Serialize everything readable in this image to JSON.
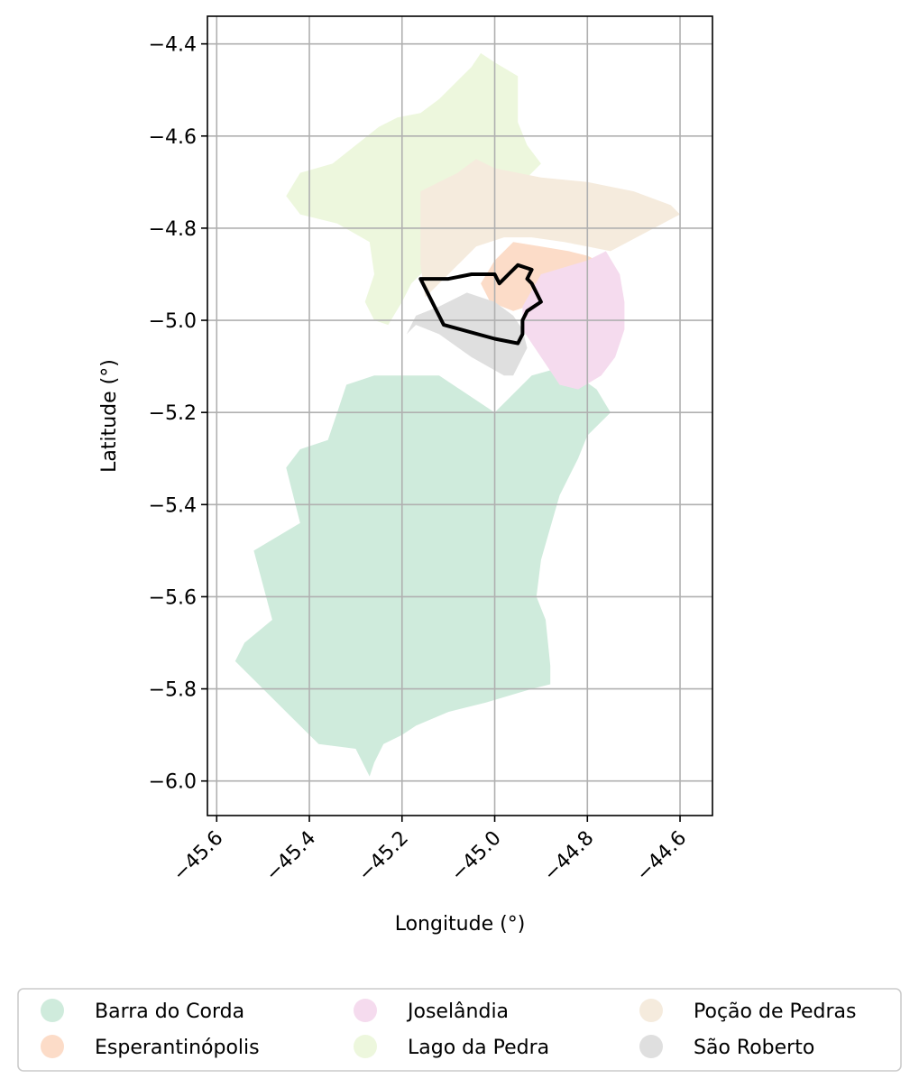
{
  "chart_data": {
    "type": "map",
    "xlabel": "Longitude (°)",
    "ylabel": "Latitude (°)",
    "xlim": [
      -45.62,
      -44.53
    ],
    "ylim": [
      -6.075,
      -4.34
    ],
    "xticks": [
      {
        "value": -45.6,
        "label": "−45.6"
      },
      {
        "value": -45.4,
        "label": "−45.4"
      },
      {
        "value": -45.2,
        "label": "−45.2"
      },
      {
        "value": -45.0,
        "label": "−45.0"
      },
      {
        "value": -44.8,
        "label": "−44.8"
      },
      {
        "value": -44.6,
        "label": "−44.6"
      }
    ],
    "yticks": [
      {
        "value": -4.4,
        "label": "−4.4"
      },
      {
        "value": -4.6,
        "label": "−4.6"
      },
      {
        "value": -4.8,
        "label": "−4.8"
      },
      {
        "value": -5.0,
        "label": "−5.0"
      },
      {
        "value": -5.2,
        "label": "−5.2"
      },
      {
        "value": -5.4,
        "label": "−5.4"
      },
      {
        "value": -5.6,
        "label": "−5.6"
      },
      {
        "value": -5.8,
        "label": "−5.8"
      },
      {
        "value": -6.0,
        "label": "−6.0"
      }
    ],
    "grid": true,
    "legend_placement": "bottom-center, 3 columns",
    "regions": [
      {
        "name": "Barra do Corda",
        "color": "#cfebdc",
        "coords": [
          [
            -45.2,
            -5.12
          ],
          [
            -45.12,
            -5.12
          ],
          [
            -45.0,
            -5.2
          ],
          [
            -44.92,
            -5.12
          ],
          [
            -44.85,
            -5.1
          ],
          [
            -44.78,
            -5.15
          ],
          [
            -44.75,
            -5.2
          ],
          [
            -44.8,
            -5.25
          ],
          [
            -44.82,
            -5.3
          ],
          [
            -44.86,
            -5.38
          ],
          [
            -44.88,
            -5.45
          ],
          [
            -44.9,
            -5.52
          ],
          [
            -44.91,
            -5.6
          ],
          [
            -44.89,
            -5.65
          ],
          [
            -44.88,
            -5.75
          ],
          [
            -44.88,
            -5.79
          ],
          [
            -44.92,
            -5.8
          ],
          [
            -45.02,
            -5.83
          ],
          [
            -45.1,
            -5.85
          ],
          [
            -45.17,
            -5.88
          ],
          [
            -45.2,
            -5.9
          ],
          [
            -45.24,
            -5.92
          ],
          [
            -45.26,
            -5.96
          ],
          [
            -45.27,
            -5.99
          ],
          [
            -45.3,
            -5.93
          ],
          [
            -45.38,
            -5.92
          ],
          [
            -45.44,
            -5.86
          ],
          [
            -45.56,
            -5.74
          ],
          [
            -45.54,
            -5.7
          ],
          [
            -45.48,
            -5.65
          ],
          [
            -45.52,
            -5.5
          ],
          [
            -45.42,
            -5.44
          ],
          [
            -45.43,
            -5.4
          ],
          [
            -45.45,
            -5.32
          ],
          [
            -45.42,
            -5.28
          ],
          [
            -45.36,
            -5.26
          ],
          [
            -45.34,
            -5.2
          ],
          [
            -45.32,
            -5.14
          ],
          [
            -45.26,
            -5.12
          ]
        ]
      },
      {
        "name": "Esperantinópolis",
        "color": "#fcdcc8",
        "coords": [
          [
            -45.0,
            -4.87
          ],
          [
            -44.96,
            -4.83
          ],
          [
            -44.9,
            -4.84
          ],
          [
            -44.84,
            -4.85
          ],
          [
            -44.8,
            -4.86
          ],
          [
            -44.76,
            -4.88
          ],
          [
            -44.82,
            -4.92
          ],
          [
            -44.9,
            -4.96
          ],
          [
            -44.96,
            -4.98
          ],
          [
            -45.01,
            -4.96
          ],
          [
            -45.03,
            -4.92
          ]
        ]
      },
      {
        "name": "Joselândia",
        "color": "#f5dbee",
        "coords": [
          [
            -44.9,
            -4.9
          ],
          [
            -44.8,
            -4.87
          ],
          [
            -44.76,
            -4.85
          ],
          [
            -44.73,
            -4.9
          ],
          [
            -44.72,
            -4.96
          ],
          [
            -44.72,
            -5.02
          ],
          [
            -44.74,
            -5.08
          ],
          [
            -44.77,
            -5.12
          ],
          [
            -44.82,
            -5.15
          ],
          [
            -44.86,
            -5.14
          ],
          [
            -44.9,
            -5.08
          ],
          [
            -44.94,
            -5.02
          ],
          [
            -44.94,
            -4.97
          ]
        ]
      },
      {
        "name": "Lago da Pedra",
        "color": "#edf7dd",
        "coords": [
          [
            -45.16,
            -4.55
          ],
          [
            -45.12,
            -4.52
          ],
          [
            -45.08,
            -4.48
          ],
          [
            -45.05,
            -4.45
          ],
          [
            -45.03,
            -4.42
          ],
          [
            -45.0,
            -4.44
          ],
          [
            -44.95,
            -4.47
          ],
          [
            -44.95,
            -4.52
          ],
          [
            -44.95,
            -4.57
          ],
          [
            -44.93,
            -4.62
          ],
          [
            -44.9,
            -4.66
          ],
          [
            -44.96,
            -4.72
          ],
          [
            -45.03,
            -4.78
          ],
          [
            -45.08,
            -4.82
          ],
          [
            -45.14,
            -4.88
          ],
          [
            -45.18,
            -4.92
          ],
          [
            -45.2,
            -4.96
          ],
          [
            -45.23,
            -5.01
          ],
          [
            -45.26,
            -5.0
          ],
          [
            -45.28,
            -4.96
          ],
          [
            -45.26,
            -4.9
          ],
          [
            -45.27,
            -4.83
          ],
          [
            -45.34,
            -4.79
          ],
          [
            -45.42,
            -4.77
          ],
          [
            -45.45,
            -4.73
          ],
          [
            -45.42,
            -4.68
          ],
          [
            -45.35,
            -4.66
          ],
          [
            -45.3,
            -4.62
          ],
          [
            -45.25,
            -4.58
          ],
          [
            -45.21,
            -4.56
          ]
        ]
      },
      {
        "name": "Poção de Pedras",
        "color": "#f5ebdd",
        "coords": [
          [
            -45.15,
            -4.95
          ],
          [
            -45.12,
            -4.92
          ],
          [
            -45.08,
            -4.88
          ],
          [
            -45.04,
            -4.84
          ],
          [
            -44.98,
            -4.82
          ],
          [
            -44.92,
            -4.82
          ],
          [
            -44.85,
            -4.83
          ],
          [
            -44.8,
            -4.84
          ],
          [
            -44.75,
            -4.85
          ],
          [
            -44.6,
            -4.77
          ],
          [
            -44.62,
            -4.75
          ],
          [
            -44.7,
            -4.72
          ],
          [
            -44.8,
            -4.7
          ],
          [
            -44.9,
            -4.69
          ],
          [
            -44.95,
            -4.68
          ],
          [
            -45.0,
            -4.67
          ],
          [
            -45.04,
            -4.65
          ],
          [
            -45.08,
            -4.68
          ],
          [
            -45.12,
            -4.7
          ],
          [
            -45.16,
            -4.72
          ],
          [
            -45.16,
            -4.8
          ],
          [
            -45.16,
            -4.88
          ]
        ]
      },
      {
        "name": "São Roberto",
        "color": "#dfdfdf",
        "coords": [
          [
            -45.06,
            -4.94
          ],
          [
            -45.0,
            -4.96
          ],
          [
            -44.96,
            -4.99
          ],
          [
            -44.94,
            -5.02
          ],
          [
            -44.93,
            -5.06
          ],
          [
            -44.96,
            -5.12
          ],
          [
            -44.98,
            -5.12
          ],
          [
            -45.05,
            -5.08
          ],
          [
            -45.12,
            -5.03
          ],
          [
            -45.17,
            -5.01
          ],
          [
            -45.19,
            -5.03
          ],
          [
            -45.17,
            -4.99
          ],
          [
            -45.12,
            -4.97
          ]
        ]
      }
    ],
    "outline": {
      "name": "",
      "color": "#000000",
      "coords": [
        [
          -45.16,
          -4.91
        ],
        [
          -45.11,
          -5.01
        ],
        [
          -45.0,
          -5.04
        ],
        [
          -44.95,
          -5.05
        ],
        [
          -44.94,
          -5.03
        ],
        [
          -44.94,
          -5.0
        ],
        [
          -44.93,
          -4.98
        ],
        [
          -44.9,
          -4.96
        ],
        [
          -44.92,
          -4.92
        ],
        [
          -44.93,
          -4.91
        ],
        [
          -44.92,
          -4.89
        ],
        [
          -44.95,
          -4.88
        ],
        [
          -44.97,
          -4.9
        ],
        [
          -44.99,
          -4.92
        ],
        [
          -45.0,
          -4.9
        ],
        [
          -45.05,
          -4.9
        ],
        [
          -45.1,
          -4.91
        ]
      ]
    }
  }
}
